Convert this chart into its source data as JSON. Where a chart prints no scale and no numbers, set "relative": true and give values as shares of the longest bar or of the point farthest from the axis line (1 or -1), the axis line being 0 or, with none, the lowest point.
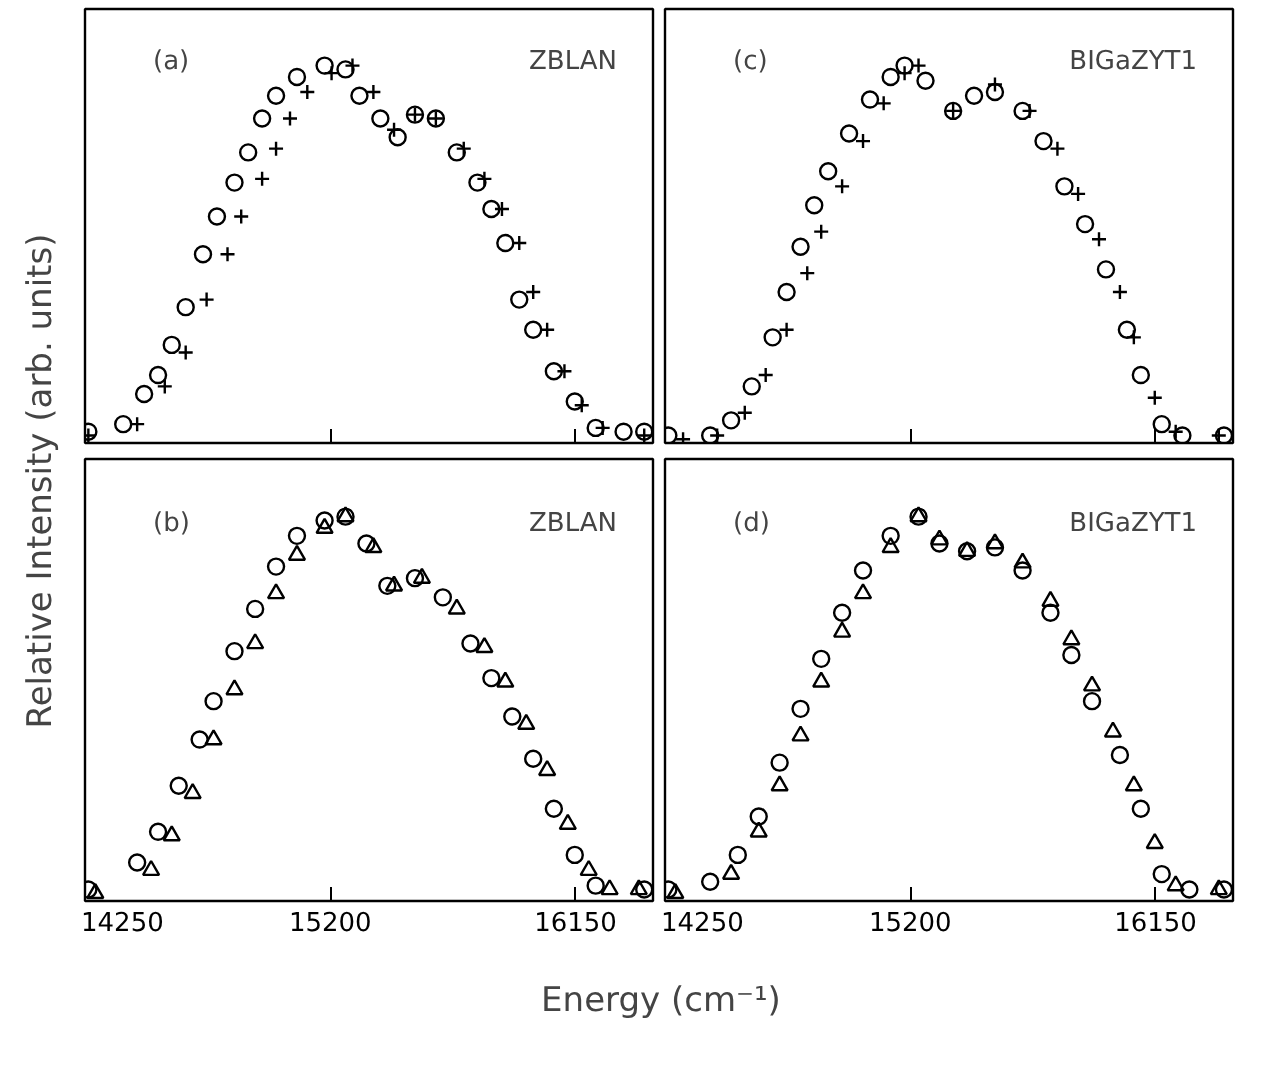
{
  "chart_data": [
    {
      "type": "scatter",
      "relative": true,
      "ylabel": "Relative Intensity (arb. units)",
      "annotations": [
        "(a)",
        "ZBLAN"
      ],
      "xlim": [
        14250,
        16450
      ],
      "xticks": [
        {
          "value": 14250,
          "label": null
        },
        {
          "value": 15200,
          "label": null
        },
        {
          "value": 16150,
          "label": null
        }
      ],
      "tick_labels": false,
      "grid": false,
      "series": [
        {
          "color": "#000000",
          "marker": "circle",
          "x": [
            14263,
            14398,
            14479,
            14533,
            14586,
            14640,
            14707,
            14761,
            14829,
            14882,
            14936,
            14990,
            15071,
            15178,
            15259,
            15313,
            15394,
            15461,
            15528,
            15609,
            15690,
            15770,
            15824,
            15878,
            15932,
            15986,
            16066,
            16147,
            16228,
            16336,
            16416
          ],
          "values": [
            0.03,
            0.05,
            0.13,
            0.18,
            0.26,
            0.36,
            0.5,
            0.6,
            0.69,
            0.77,
            0.86,
            0.92,
            0.97,
            1.0,
            0.99,
            0.92,
            0.86,
            0.81,
            0.87,
            0.86,
            0.77,
            0.69,
            0.62,
            0.53,
            0.38,
            0.3,
            0.19,
            0.11,
            0.04,
            0.03,
            0.03
          ]
        },
        {
          "color": "#000000",
          "marker": "cross",
          "x": [
            14263,
            14452,
            14559,
            14640,
            14721,
            14802,
            14855,
            14936,
            14990,
            15044,
            15111,
            15205,
            15286,
            15367,
            15447,
            15528,
            15609,
            15717,
            15797,
            15865,
            15932,
            15986,
            16040,
            16107,
            16174,
            16255,
            16416
          ],
          "values": [
            0.02,
            0.05,
            0.15,
            0.24,
            0.38,
            0.5,
            0.6,
            0.7,
            0.78,
            0.86,
            0.93,
            0.98,
            1.0,
            0.93,
            0.83,
            0.87,
            0.86,
            0.78,
            0.7,
            0.62,
            0.53,
            0.4,
            0.3,
            0.19,
            0.1,
            0.04,
            0.02
          ]
        }
      ]
    },
    {
      "type": "scatter",
      "relative": true,
      "annotations": [
        "(c)",
        "BIGaZYT1"
      ],
      "xlim": [
        14250,
        16450
      ],
      "xticks": [
        {
          "value": 14250,
          "label": null
        },
        {
          "value": 15200,
          "label": null
        },
        {
          "value": 16150,
          "label": null
        }
      ],
      "tick_labels": false,
      "grid": false,
      "series": [
        {
          "color": "#000000",
          "marker": "circle",
          "x": [
            14263,
            14425,
            14506,
            14586,
            14667,
            14721,
            14775,
            14828,
            14882,
            14963,
            15044,
            15124,
            15178,
            15259,
            15366,
            15447,
            15528,
            15635,
            15716,
            15797,
            15877,
            15958,
            16039,
            16093,
            16174,
            16254,
            16415
          ],
          "values": [
            0.02,
            0.02,
            0.06,
            0.15,
            0.28,
            0.4,
            0.52,
            0.63,
            0.72,
            0.82,
            0.91,
            0.97,
            1.0,
            0.96,
            0.88,
            0.92,
            0.93,
            0.88,
            0.8,
            0.68,
            0.58,
            0.46,
            0.3,
            0.18,
            0.05,
            0.02,
            0.02
          ]
        },
        {
          "color": "#000000",
          "marker": "cross",
          "x": [
            14320,
            14452,
            14559,
            14640,
            14721,
            14801,
            14855,
            14936,
            15017,
            15097,
            15178,
            15232,
            15366,
            15528,
            15662,
            15770,
            15850,
            15931,
            16012,
            16066,
            16147,
            16228,
            16395
          ],
          "values": [
            0.01,
            0.02,
            0.08,
            0.18,
            0.3,
            0.45,
            0.56,
            0.68,
            0.8,
            0.9,
            0.98,
            1.0,
            0.88,
            0.95,
            0.88,
            0.78,
            0.66,
            0.54,
            0.4,
            0.28,
            0.12,
            0.03,
            0.02
          ]
        }
      ]
    },
    {
      "type": "scatter",
      "relative": true,
      "xlabel": "Energy (cm⁻¹)",
      "annotations": [
        "(b)",
        "ZBLAN"
      ],
      "xlim": [
        14250,
        16450
      ],
      "xticks": [
        14250,
        15200,
        16150
      ],
      "tick_labels": "x",
      "grid": false,
      "series": [
        {
          "color": "#000000",
          "marker": "circle",
          "x": [
            14263,
            14452,
            14533,
            14613,
            14694,
            14748,
            14829,
            14909,
            14990,
            15071,
            15178,
            15259,
            15340,
            15421,
            15528,
            15636,
            15743,
            15824,
            15905,
            15986,
            16066,
            16147,
            16228,
            16416
          ],
          "values": [
            0.03,
            0.1,
            0.18,
            0.3,
            0.42,
            0.52,
            0.65,
            0.76,
            0.87,
            0.95,
            0.99,
            1.0,
            0.93,
            0.82,
            0.84,
            0.79,
            0.67,
            0.58,
            0.48,
            0.37,
            0.24,
            0.12,
            0.04,
            0.03
          ]
        },
        {
          "color": "#000000",
          "marker": "triangle",
          "x": [
            14290,
            14506,
            14586,
            14667,
            14748,
            14829,
            14909,
            14990,
            15071,
            15178,
            15259,
            15367,
            15447,
            15555,
            15690,
            15797,
            15878,
            15959,
            16040,
            16120,
            16201,
            16282,
            16395
          ],
          "values": [
            0.02,
            0.08,
            0.17,
            0.28,
            0.42,
            0.55,
            0.67,
            0.8,
            0.9,
            0.97,
            1.0,
            0.92,
            0.82,
            0.84,
            0.76,
            0.66,
            0.57,
            0.46,
            0.34,
            0.2,
            0.08,
            0.03,
            0.03
          ]
        }
      ]
    },
    {
      "type": "scatter",
      "relative": true,
      "annotations": [
        "(d)",
        "BIGaZYT1"
      ],
      "xlim": [
        14250,
        16450
      ],
      "xticks": [
        14250,
        15200,
        16150
      ],
      "tick_labels": "x",
      "grid": false,
      "series": [
        {
          "color": "#000000",
          "marker": "circle",
          "x": [
            14263,
            14425,
            14532,
            14613,
            14694,
            14775,
            14855,
            14936,
            15017,
            15124,
            15232,
            15313,
            15420,
            15528,
            15635,
            15743,
            15824,
            15904,
            16012,
            16093,
            16174,
            16281,
            16415
          ],
          "values": [
            0.03,
            0.05,
            0.12,
            0.22,
            0.36,
            0.5,
            0.63,
            0.75,
            0.86,
            0.95,
            1.0,
            0.93,
            0.91,
            0.92,
            0.86,
            0.75,
            0.64,
            0.52,
            0.38,
            0.24,
            0.07,
            0.03,
            0.03
          ]
        },
        {
          "color": "#000000",
          "marker": "triangle",
          "x": [
            14290,
            14506,
            14613,
            14694,
            14775,
            14855,
            14936,
            15017,
            15124,
            15232,
            15313,
            15420,
            15528,
            15635,
            15743,
            15824,
            15904,
            15985,
            16066,
            16147,
            16228,
            16395
          ],
          "values": [
            0.02,
            0.07,
            0.18,
            0.3,
            0.43,
            0.57,
            0.7,
            0.8,
            0.92,
            1.0,
            0.94,
            0.91,
            0.93,
            0.88,
            0.78,
            0.68,
            0.56,
            0.44,
            0.3,
            0.15,
            0.04,
            0.03
          ]
        }
      ]
    }
  ]
}
